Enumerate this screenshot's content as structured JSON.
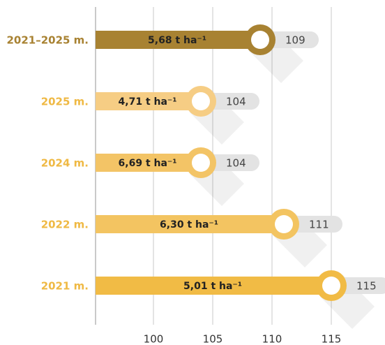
{
  "chart_data": {
    "type": "bar",
    "orientation": "horizontal",
    "categories": [
      "2021–2025 m.",
      "2025 m.",
      "2024 m.",
      "2022 m.",
      "2021 m."
    ],
    "values": [
      109,
      104,
      104,
      111,
      115
    ],
    "annotations": [
      "5,68 t ha⁻¹",
      "4,71 t ha⁻¹",
      "6,69 t ha⁻¹",
      "6,30 t ha⁻¹",
      "5,01 t ha⁻¹"
    ],
    "colors": [
      "#a88232",
      "#f6cd84",
      "#f3c466",
      "#f3c461",
      "#f1bb45"
    ],
    "label_colors": [
      "#a88232",
      "#efb944",
      "#efb944",
      "#efb944",
      "#efb944"
    ],
    "xlim": [
      95,
      120
    ],
    "xticks": [
      100,
      105,
      110,
      115
    ],
    "grid": true
  }
}
